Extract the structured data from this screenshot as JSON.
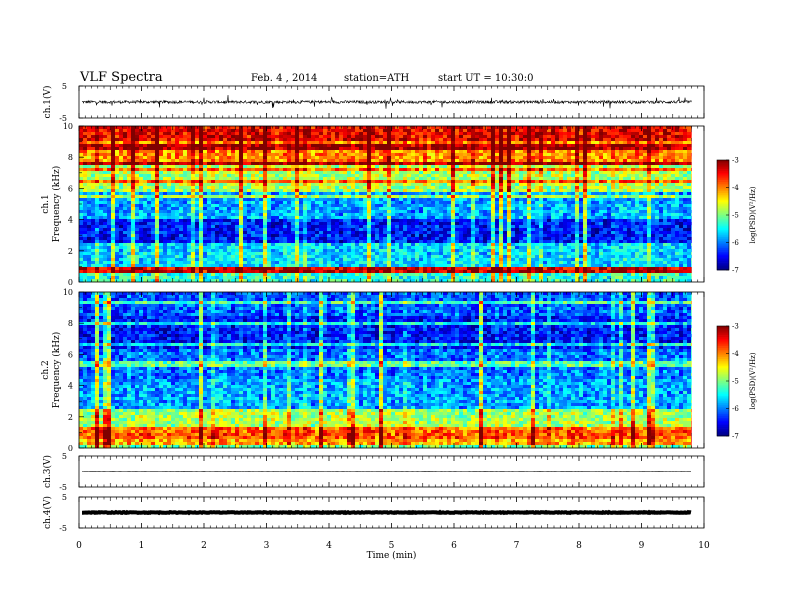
{
  "header": {
    "title": "VLF Spectra",
    "date": "Feb. 4 , 2014",
    "station": "station=ATH",
    "start": "start UT = 10:30:0"
  },
  "colors": {
    "jet": [
      "#00007f",
      "#0000ff",
      "#007fff",
      "#00ffff",
      "#7fff7f",
      "#ffff00",
      "#ff7f00",
      "#ff0000",
      "#7f0000"
    ],
    "trace": "#000000",
    "axis": "#000000"
  },
  "chart_data": [
    {
      "type": "line",
      "panel": "ch1-waveform",
      "ylabel": "ch.1(V)",
      "ylim": [
        -5,
        5
      ],
      "yticks": [
        "5",
        "-5"
      ],
      "xlim": [
        0,
        10
      ],
      "approx_mean": 0,
      "approx_amplitude": 1.5
    },
    {
      "type": "heatmap",
      "panel": "ch1-spectrogram",
      "ylabel": "ch.1 Frequency (kHz)",
      "ylabel_lines": [
        "ch.1",
        "Frequency (kHz)"
      ],
      "ylim": [
        0,
        10
      ],
      "yticks": [
        "0",
        "2",
        "4",
        "6",
        "8",
        "10"
      ],
      "xlim": [
        0,
        10
      ],
      "colorbar": {
        "label": "log(PSD)(V²/Hz)",
        "ticks": [
          "-3",
          "-4",
          "-5",
          "-6",
          "-7"
        ],
        "range": [
          -7,
          -3
        ]
      },
      "levels_by_freq_khz": [
        {
          "f": [
            0.0,
            0.6
          ],
          "logpsd": -5.5
        },
        {
          "f": [
            0.6,
            1.0
          ],
          "logpsd": -3.5
        },
        {
          "f": [
            1.0,
            2.5
          ],
          "logpsd": -5.8
        },
        {
          "f": [
            2.5,
            4.0
          ],
          "logpsd": -6.6
        },
        {
          "f": [
            4.0,
            5.8
          ],
          "logpsd": -6.0
        },
        {
          "f": [
            5.8,
            7.5
          ],
          "logpsd": -5.0
        },
        {
          "f": [
            7.5,
            9.0
          ],
          "logpsd": -4.2
        },
        {
          "f": [
            9.0,
            10.0
          ],
          "logpsd": -3.6
        }
      ]
    },
    {
      "type": "heatmap",
      "panel": "ch2-spectrogram",
      "ylabel": "ch.2 Frequency (kHz)",
      "ylabel_lines": [
        "ch.2",
        "Frequency (kHz)"
      ],
      "ylim": [
        0,
        10
      ],
      "yticks": [
        "0",
        "2",
        "4",
        "6",
        "8",
        "10"
      ],
      "xlim": [
        0,
        10
      ],
      "colorbar": {
        "label": "log(PSD)(V²/Hz)",
        "ticks": [
          "-3",
          "-4",
          "-5",
          "-6",
          "-7"
        ],
        "range": [
          -7,
          -3
        ]
      },
      "levels_by_freq_khz": [
        {
          "f": [
            0.0,
            0.6
          ],
          "logpsd": -5.2
        },
        {
          "f": [
            0.6,
            1.2
          ],
          "logpsd": -4.0
        },
        {
          "f": [
            1.2,
            2.5
          ],
          "logpsd": -5.0
        },
        {
          "f": [
            2.5,
            4.5
          ],
          "logpsd": -6.0
        },
        {
          "f": [
            4.5,
            6.3
          ],
          "logpsd": -6.2
        },
        {
          "f": [
            6.3,
            8.5
          ],
          "logpsd": -6.6
        },
        {
          "f": [
            8.5,
            10.0
          ],
          "logpsd": -6.3
        }
      ]
    },
    {
      "type": "line",
      "panel": "ch3-waveform",
      "ylabel": "ch.3(V)",
      "ylim": [
        -5,
        5
      ],
      "yticks": [
        "5",
        "-5"
      ],
      "xlim": [
        0,
        10
      ],
      "approx_mean": 0,
      "approx_amplitude": 0.1
    },
    {
      "type": "line",
      "panel": "ch4-waveform",
      "ylabel": "ch.4(V)",
      "ylim": [
        -5,
        5
      ],
      "yticks": [
        "5",
        "-5"
      ],
      "xlim": [
        0,
        10
      ],
      "approx_mean": 0,
      "approx_amplitude": 0.4
    }
  ],
  "xaxis": {
    "label": "Time (min)",
    "ticks": [
      "0",
      "1",
      "2",
      "3",
      "4",
      "5",
      "6",
      "7",
      "8",
      "9",
      "10"
    ],
    "range": [
      0,
      10
    ],
    "data_end": 9.8
  }
}
